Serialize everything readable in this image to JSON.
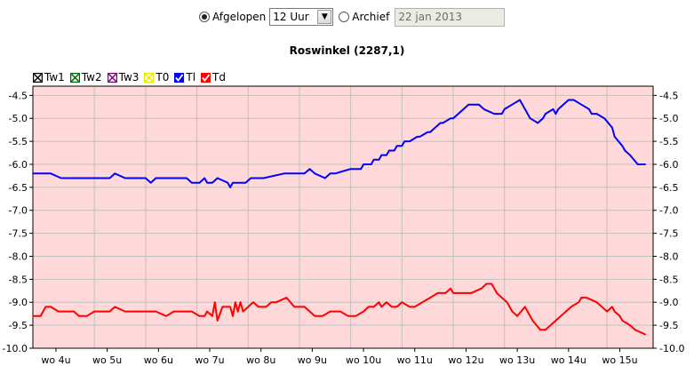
{
  "controls": {
    "afgelopen_label": "Afgelopen",
    "period_value": "12 Uur",
    "archief_label": "Archief",
    "archief_value": "22 jan 2013"
  },
  "chart_data": {
    "type": "line",
    "title": "Roswinkel (2287,1)",
    "legend_placement": "top-left",
    "grid": true,
    "background_color": "#ffd9d9",
    "ylim": [
      -10.0,
      -4.3
    ],
    "yticks": [
      -4.5,
      -5.0,
      -5.5,
      -6.0,
      -6.5,
      -7.0,
      -7.5,
      -8.0,
      -8.5,
      -9.0,
      -9.5,
      -10.0
    ],
    "xlim": [
      3.8,
      15.9
    ],
    "xticks": [
      {
        "x": 4.25,
        "label": "wo 4u"
      },
      {
        "x": 5.25,
        "label": "wo 5u"
      },
      {
        "x": 6.25,
        "label": "wo 6u"
      },
      {
        "x": 7.25,
        "label": "wo 7u"
      },
      {
        "x": 8.25,
        "label": "wo 8u"
      },
      {
        "x": 9.25,
        "label": "wo 9u"
      },
      {
        "x": 10.25,
        "label": "wo 10u"
      },
      {
        "x": 11.25,
        "label": "wo 11u"
      },
      {
        "x": 12.25,
        "label": "wo 12u"
      },
      {
        "x": 13.25,
        "label": "wo 13u"
      },
      {
        "x": 14.25,
        "label": "wo 14u"
      },
      {
        "x": 15.25,
        "label": "wo 15u"
      }
    ],
    "xgrid": [
      5,
      6,
      7,
      8,
      9,
      10,
      11,
      12,
      13,
      14,
      15
    ],
    "legend": [
      {
        "name": "Tw1",
        "color": "#000000",
        "checked": false
      },
      {
        "name": "Tw2",
        "color": "#006400",
        "checked": false
      },
      {
        "name": "Tw3",
        "color": "#800080",
        "checked": false
      },
      {
        "name": "T0",
        "color": "#e6e600",
        "checked": false
      },
      {
        "name": "Tl",
        "color": "#0000ff",
        "checked": true
      },
      {
        "name": "Td",
        "color": "#ff0000",
        "checked": true
      }
    ],
    "series": [
      {
        "name": "Tl",
        "color": "#0000ff",
        "x": [
          3.8,
          4.05,
          4.15,
          4.35,
          4.6,
          5.0,
          5.2,
          5.3,
          5.4,
          5.6,
          5.9,
          6.0,
          6.1,
          6.2,
          6.4,
          6.7,
          6.8,
          6.9,
          7.05,
          7.15,
          7.2,
          7.3,
          7.4,
          7.6,
          7.65,
          7.7,
          7.8,
          7.95,
          8.05,
          8.3,
          8.7,
          9.0,
          9.1,
          9.2,
          9.3,
          9.5,
          9.6,
          9.7,
          10.0,
          10.05,
          10.2,
          10.25,
          10.4,
          10.45,
          10.55,
          10.6,
          10.7,
          10.75,
          10.85,
          10.9,
          11.0,
          11.05,
          11.15,
          11.3,
          11.35,
          11.5,
          11.55,
          11.75,
          11.8,
          11.95,
          12.0,
          12.2,
          12.3,
          12.5,
          12.6,
          12.8,
          12.95,
          13.0,
          13.15,
          13.3,
          13.5,
          13.65,
          13.75,
          13.8,
          13.95,
          14.0,
          14.05,
          14.15,
          14.25,
          14.35,
          14.5,
          14.65,
          14.7,
          14.8,
          14.95,
          15.1,
          15.15,
          15.3,
          15.35,
          15.45,
          15.6,
          15.75
        ],
        "values": [
          -6.2,
          -6.2,
          -6.2,
          -6.3,
          -6.3,
          -6.3,
          -6.3,
          -6.3,
          -6.2,
          -6.3,
          -6.3,
          -6.3,
          -6.4,
          -6.3,
          -6.3,
          -6.3,
          -6.3,
          -6.4,
          -6.4,
          -6.3,
          -6.4,
          -6.4,
          -6.3,
          -6.4,
          -6.5,
          -6.4,
          -6.4,
          -6.4,
          -6.3,
          -6.3,
          -6.2,
          -6.2,
          -6.2,
          -6.1,
          -6.2,
          -6.3,
          -6.2,
          -6.2,
          -6.1,
          -6.1,
          -6.1,
          -6.0,
          -6.0,
          -5.9,
          -5.9,
          -5.8,
          -5.8,
          -5.7,
          -5.7,
          -5.6,
          -5.6,
          -5.5,
          -5.5,
          -5.4,
          -5.4,
          -5.3,
          -5.3,
          -5.1,
          -5.1,
          -5.0,
          -5.0,
          -4.8,
          -4.7,
          -4.7,
          -4.8,
          -4.9,
          -4.9,
          -4.8,
          -4.7,
          -4.6,
          -5.0,
          -5.1,
          -5.0,
          -4.9,
          -4.8,
          -4.9,
          -4.8,
          -4.7,
          -4.6,
          -4.6,
          -4.7,
          -4.8,
          -4.9,
          -4.9,
          -5.0,
          -5.2,
          -5.4,
          -5.6,
          -5.7,
          -5.8,
          -6.0,
          -6.0
        ]
      },
      {
        "name": "Td",
        "color": "#ff0000",
        "x": [
          3.8,
          3.95,
          4.0,
          4.05,
          4.15,
          4.3,
          4.5,
          4.6,
          4.7,
          4.85,
          5.0,
          5.2,
          5.3,
          5.4,
          5.6,
          5.8,
          6.0,
          6.1,
          6.2,
          6.4,
          6.55,
          6.7,
          6.8,
          6.9,
          7.05,
          7.1,
          7.15,
          7.2,
          7.3,
          7.35,
          7.4,
          7.5,
          7.6,
          7.65,
          7.7,
          7.75,
          7.8,
          7.85,
          7.9,
          8.0,
          8.1,
          8.2,
          8.3,
          8.35,
          8.45,
          8.55,
          8.75,
          8.9,
          9.05,
          9.1,
          9.3,
          9.45,
          9.6,
          9.8,
          9.95,
          10.1,
          10.25,
          10.35,
          10.45,
          10.55,
          10.6,
          10.7,
          10.8,
          10.9,
          11.0,
          11.15,
          11.25,
          11.4,
          11.55,
          11.7,
          11.85,
          11.95,
          12.0,
          12.05,
          12.1,
          12.2,
          12.35,
          12.55,
          12.65,
          12.75,
          12.85,
          12.95,
          13.05,
          13.15,
          13.25,
          13.4,
          13.55,
          13.7,
          13.8,
          13.9,
          14.0,
          14.2,
          14.3,
          14.45,
          14.5,
          14.6,
          14.8,
          14.9,
          15.0,
          15.1,
          15.15,
          15.25,
          15.3,
          15.45,
          15.55,
          15.75
        ],
        "values": [
          -9.3,
          -9.3,
          -9.2,
          -9.1,
          -9.1,
          -9.2,
          -9.2,
          -9.2,
          -9.3,
          -9.3,
          -9.2,
          -9.2,
          -9.2,
          -9.1,
          -9.2,
          -9.2,
          -9.2,
          -9.2,
          -9.2,
          -9.3,
          -9.2,
          -9.2,
          -9.2,
          -9.2,
          -9.3,
          -9.3,
          -9.3,
          -9.2,
          -9.3,
          -9.0,
          -9.4,
          -9.1,
          -9.1,
          -9.1,
          -9.3,
          -9.0,
          -9.2,
          -9.0,
          -9.2,
          -9.1,
          -9.0,
          -9.1,
          -9.1,
          -9.1,
          -9.0,
          -9.0,
          -8.9,
          -9.1,
          -9.1,
          -9.1,
          -9.3,
          -9.3,
          -9.2,
          -9.2,
          -9.3,
          -9.3,
          -9.2,
          -9.1,
          -9.1,
          -9.0,
          -9.1,
          -9.0,
          -9.1,
          -9.1,
          -9.0,
          -9.1,
          -9.1,
          -9.0,
          -8.9,
          -8.8,
          -8.8,
          -8.7,
          -8.8,
          -8.8,
          -8.8,
          -8.8,
          -8.8,
          -8.7,
          -8.6,
          -8.6,
          -8.8,
          -8.9,
          -9.0,
          -9.2,
          -9.3,
          -9.1,
          -9.4,
          -9.6,
          -9.6,
          -9.5,
          -9.4,
          -9.2,
          -9.1,
          -9.0,
          -8.9,
          -8.9,
          -9.0,
          -9.1,
          -9.2,
          -9.1,
          -9.2,
          -9.3,
          -9.4,
          -9.5,
          -9.6,
          -9.7
        ]
      }
    ]
  }
}
